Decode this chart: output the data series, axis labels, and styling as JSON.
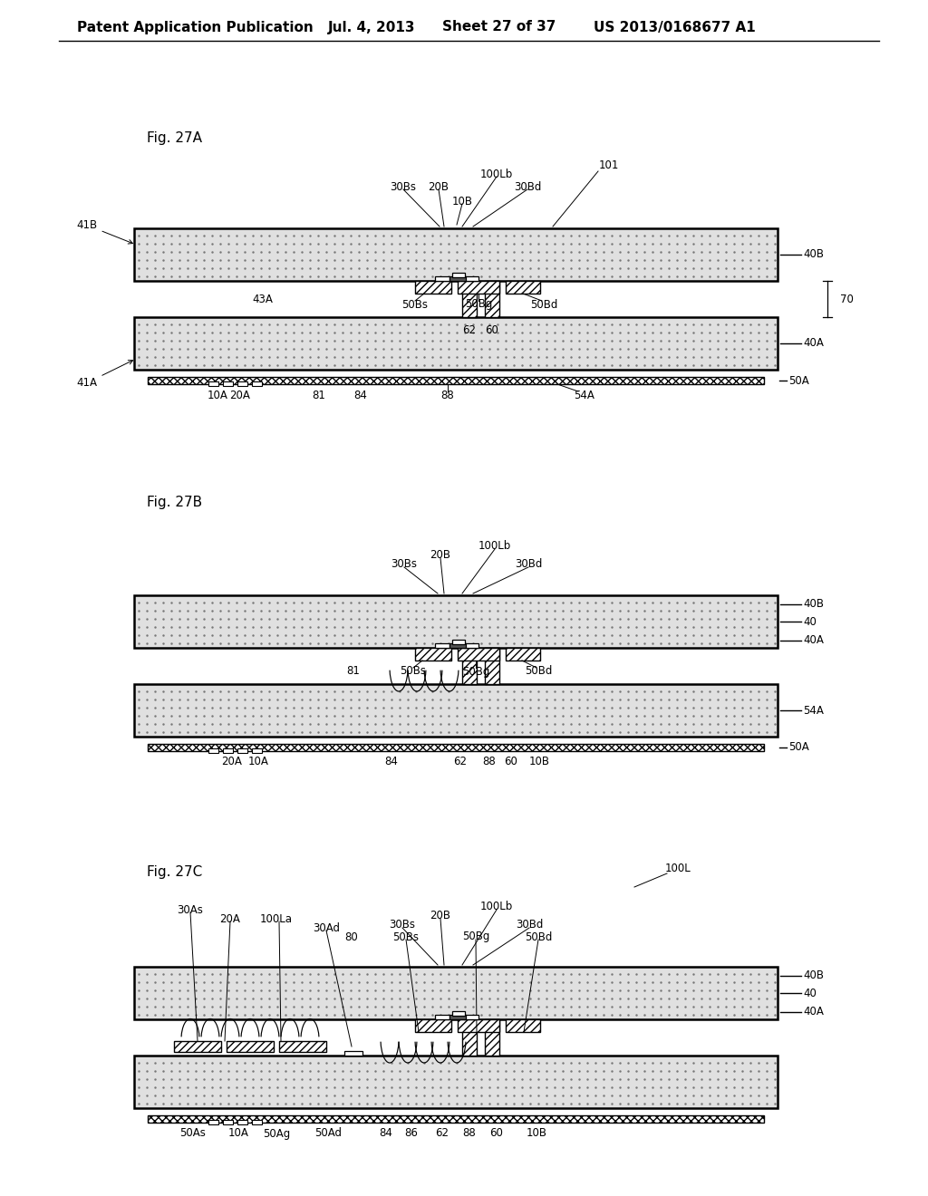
{
  "bg_color": "#ffffff",
  "header_text": "Patent Application Publication",
  "header_date": "Jul. 4, 2013",
  "header_sheet": "Sheet 27 of 37",
  "header_patent": "US 2013/0168677 A1",
  "fig_27a": "Fig. 27A",
  "fig_27b": "Fig. 27B",
  "fig_27c": "Fig. 27C",
  "fs_header": 11,
  "fs_fig": 11,
  "fs_label": 8.5,
  "dot_fc": "#e0e0e0"
}
